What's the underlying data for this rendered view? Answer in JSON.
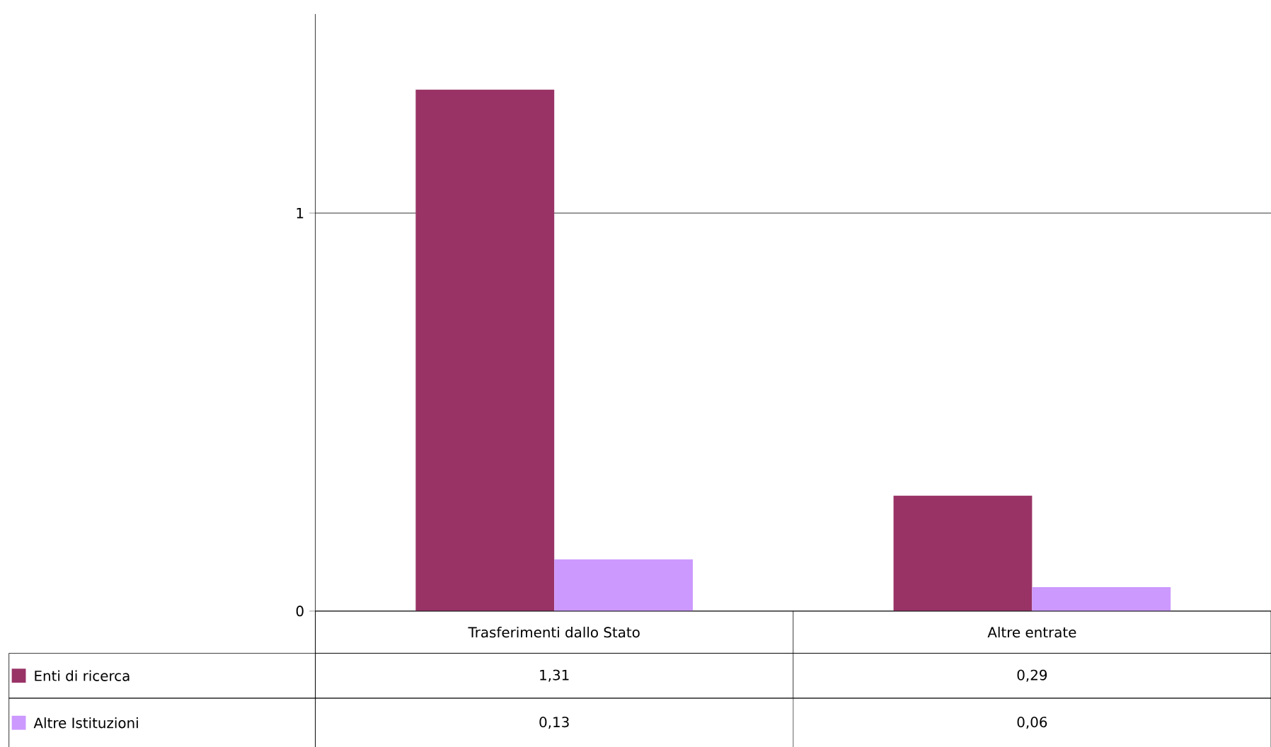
{
  "chart_data": {
    "type": "bar",
    "categories": [
      "Trasferimenti  dallo Stato",
      "Altre entrate"
    ],
    "series": [
      {
        "name": "Enti di ricerca",
        "color": "#993366",
        "values": [
          1.31,
          0.29
        ],
        "value_labels": [
          "1,31",
          "0,29"
        ]
      },
      {
        "name": "Altre Istituzioni",
        "color": "#cc99ff",
        "values": [
          0.13,
          0.06
        ],
        "value_labels": [
          "0,13",
          "0,06"
        ]
      }
    ],
    "ylim": [
      0,
      1.5
    ],
    "yticks": [
      0,
      1
    ],
    "grid": "y",
    "legend": "bottom left"
  }
}
